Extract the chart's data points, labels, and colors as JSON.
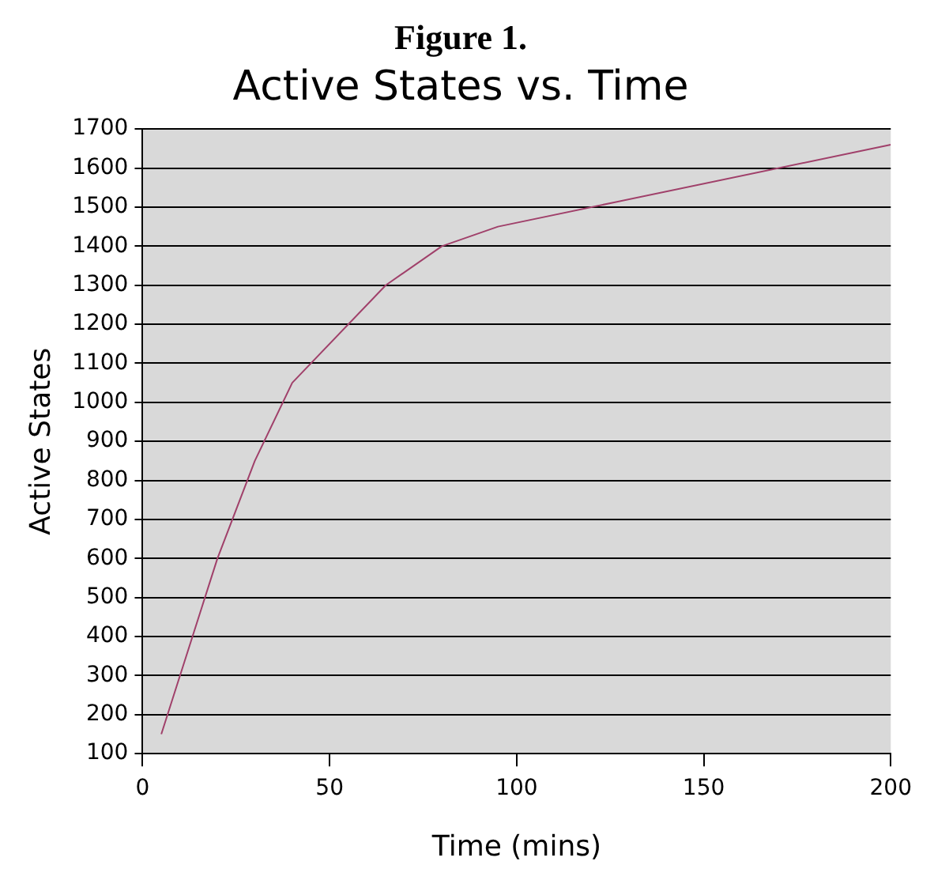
{
  "chart_data": {
    "type": "line",
    "title": "Figure 1.",
    "subtitle": "Active States vs. Time",
    "xlabel": "Time (mins)",
    "ylabel": "Active States",
    "x": [
      5,
      20,
      30,
      40,
      65,
      80,
      95,
      200
    ],
    "series": [
      {
        "color": "#a0406a",
        "values": [
          150,
          600,
          850,
          1050,
          1300,
          1400,
          1450,
          1660
        ]
      }
    ],
    "xlim": [
      0,
      200
    ],
    "xticks": [
      0,
      50,
      100,
      150,
      200
    ],
    "ylim": [
      100,
      1700
    ],
    "yticks": [
      100,
      200,
      300,
      400,
      500,
      600,
      700,
      800,
      900,
      1000,
      1100,
      1200,
      1300,
      1400,
      1500,
      1600,
      1700
    ],
    "grid": "y",
    "legend": false,
    "marker": "none",
    "line_style": "solid"
  }
}
